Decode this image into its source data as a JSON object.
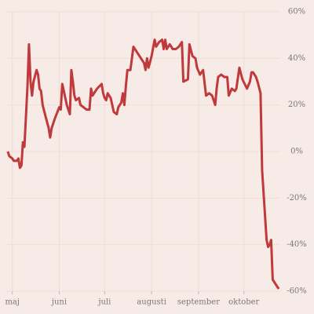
{
  "chart_data": {
    "type": "line",
    "x": [
      -3,
      -2,
      0,
      1,
      3,
      4,
      5,
      6,
      7,
      8,
      10,
      11,
      12,
      13,
      14,
      16,
      17,
      18,
      19,
      20,
      22,
      24,
      25,
      26,
      28,
      31,
      32,
      33,
      34,
      36,
      38,
      39,
      40,
      41,
      42,
      44,
      45,
      47,
      49,
      51,
      52,
      53,
      54,
      56,
      59,
      60,
      61,
      62,
      63,
      65,
      66,
      67,
      69,
      70,
      72,
      73,
      74,
      75,
      76,
      78,
      80,
      82,
      84,
      87,
      88,
      89,
      90,
      92,
      94,
      95,
      97,
      99,
      100,
      101,
      102,
      104,
      106,
      108,
      110,
      112,
      113,
      116,
      117,
      119,
      121,
      122,
      124,
      126,
      128,
      130,
      132,
      134,
      135,
      136,
      138,
      140,
      142,
      143,
      145,
      147,
      148,
      150,
      152,
      155,
      157,
      158,
      159,
      161,
      162,
      164,
      165,
      168,
      169,
      170,
      171,
      172,
      175,
      176
    ],
    "series": [
      {
        "color": "#c0393b",
        "values": [
          0,
          -2,
          -3,
          -4,
          -4,
          -3,
          -7,
          -6,
          4,
          2,
          28,
          46,
          30,
          24,
          30,
          35,
          33,
          27,
          26,
          20,
          15,
          10,
          6,
          10,
          14,
          19,
          18,
          29,
          26,
          20,
          16,
          35,
          30,
          24,
          22,
          23,
          20,
          19,
          18,
          18,
          27,
          24,
          25,
          27,
          29,
          25,
          23,
          22,
          25,
          23,
          20,
          17,
          16,
          19,
          21,
          25,
          20,
          28,
          35,
          35,
          45,
          43,
          41,
          38,
          35,
          40,
          36,
          41,
          48,
          45,
          47,
          48,
          44,
          48,
          44,
          46,
          44,
          44,
          45,
          47,
          30,
          31,
          46,
          41,
          40,
          36,
          33,
          35,
          24,
          25,
          24,
          20,
          27,
          32,
          33,
          32,
          32,
          24,
          27,
          26,
          27,
          36,
          31,
          27,
          30,
          34,
          34,
          32,
          30,
          25,
          -8,
          -38,
          -41,
          -40,
          -38,
          -55,
          -58,
          -59
        ]
      }
    ],
    "xlim": [
      -4,
      177
    ],
    "xticks": [
      {
        "value": 0,
        "label": "maj"
      },
      {
        "value": 31,
        "label": "juni"
      },
      {
        "value": 61,
        "label": "juli"
      },
      {
        "value": 92,
        "label": "augusti"
      },
      {
        "value": 123,
        "label": "september"
      },
      {
        "value": 153,
        "label": "oktober"
      }
    ],
    "ylim": [
      -60,
      60
    ],
    "yticks": [
      {
        "value": -60,
        "label": "-60%"
      },
      {
        "value": -40,
        "label": "-40%"
      },
      {
        "value": -20,
        "label": "-20%"
      },
      {
        "value": 0,
        "label": "0%"
      },
      {
        "value": 20,
        "label": "20%"
      },
      {
        "value": 40,
        "label": "40%"
      },
      {
        "value": 60,
        "label": "60%"
      }
    ],
    "grid": true
  }
}
